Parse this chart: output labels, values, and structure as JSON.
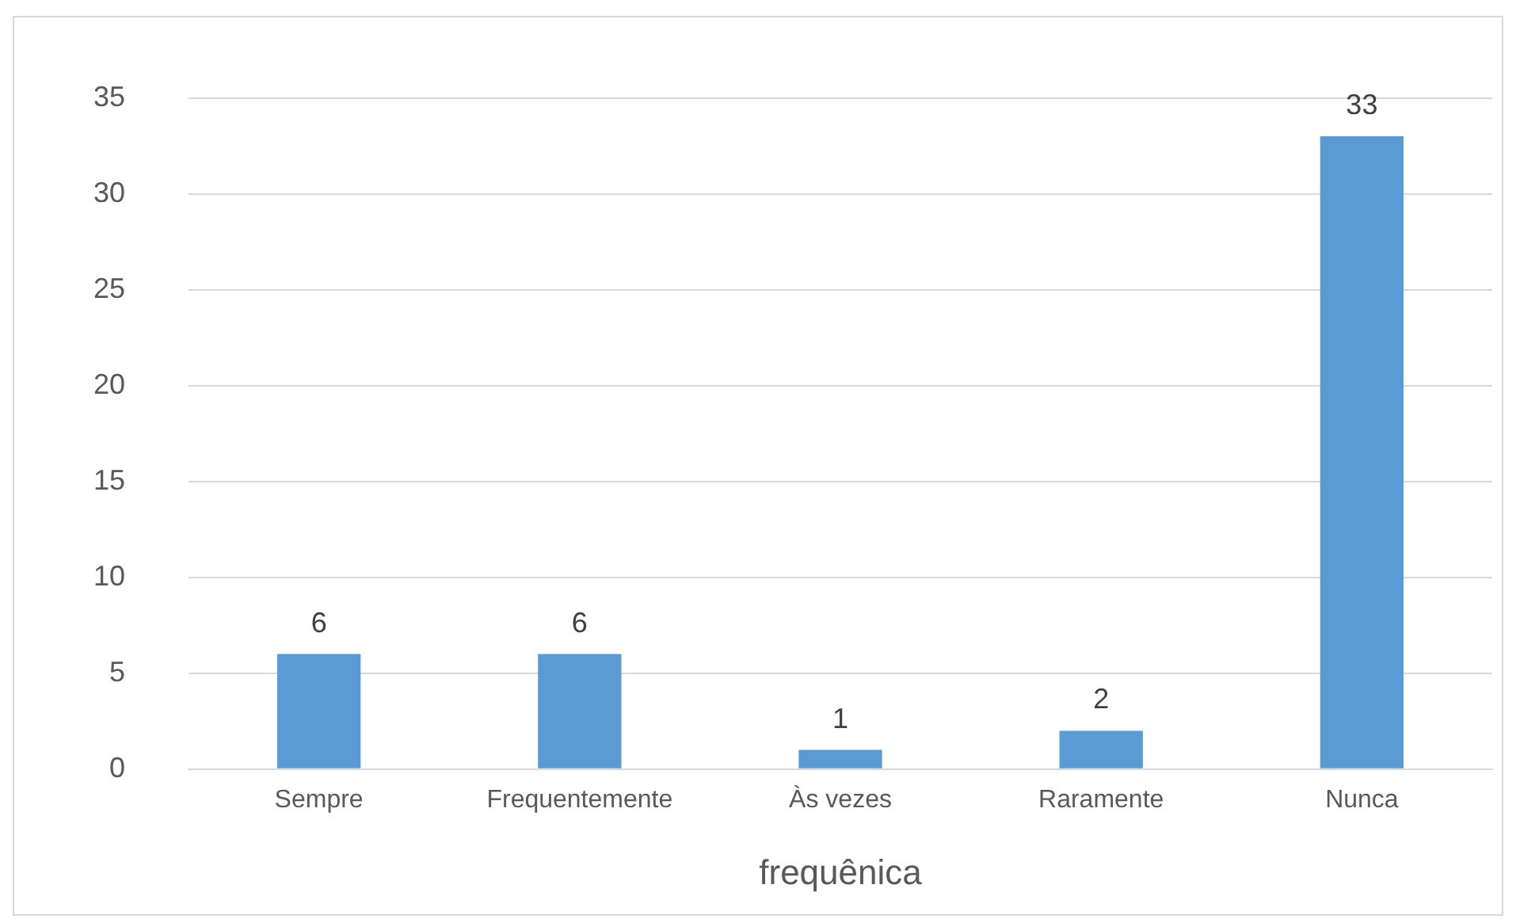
{
  "chart_data": {
    "type": "bar",
    "xlabel": "frequênica",
    "categories": [
      "Sempre",
      "Frequentemente",
      "Às vezes",
      "Raramente",
      "Nunca"
    ],
    "values": [
      6,
      6,
      1,
      2,
      33
    ],
    "color": "#5b9bd5",
    "ylim": [
      0,
      35
    ],
    "yticks": [
      0,
      5,
      10,
      15,
      20,
      25,
      30,
      35
    ],
    "grid": "y",
    "data_labels": true
  }
}
